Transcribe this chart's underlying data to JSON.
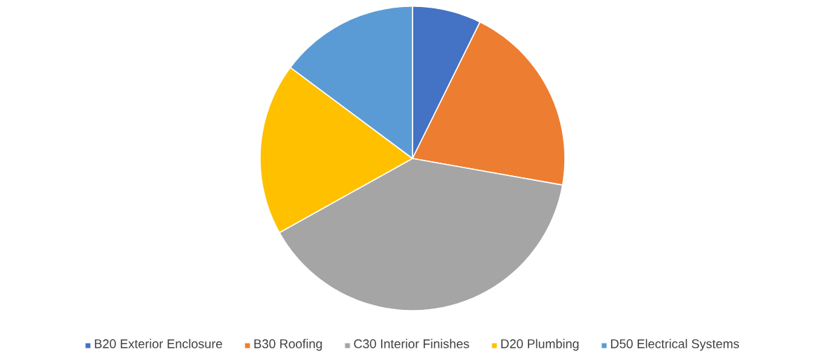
{
  "chart_data": {
    "type": "pie",
    "categories": [
      "B20 Exterior Enclosure",
      "B30 Roofing",
      "C30 Interior Finishes",
      "D20 Plumbing",
      "D50 Electrical Systems"
    ],
    "values": [
      7.3,
      20.5,
      39.1,
      18.3,
      14.8
    ],
    "colors": [
      "#4472c4",
      "#ed7d31",
      "#a5a5a5",
      "#ffc000",
      "#5b9bd5"
    ],
    "legend": "bottom"
  }
}
